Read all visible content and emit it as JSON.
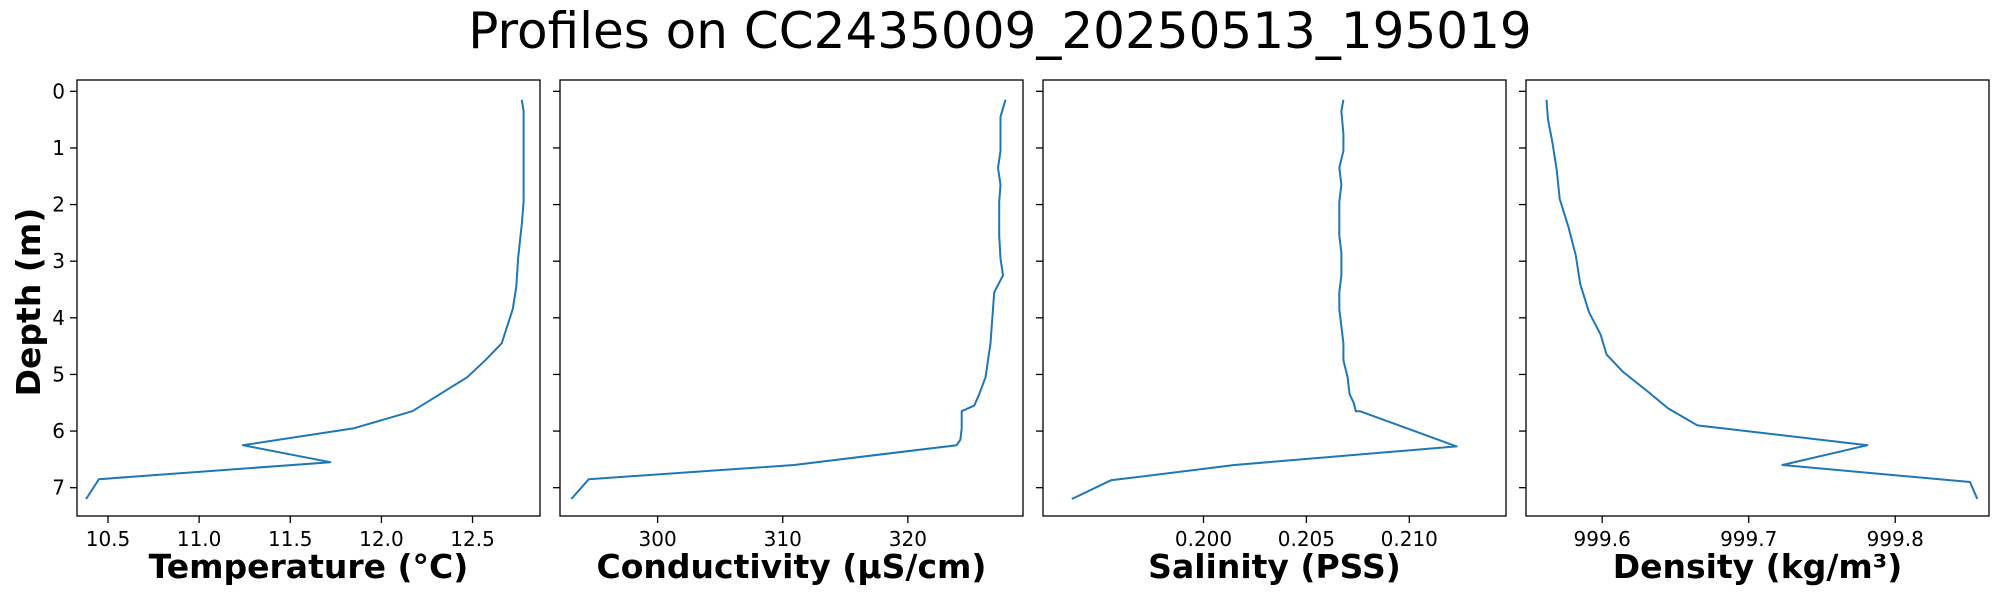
{
  "figure": {
    "title": "Profiles on CC2435009_20250513_195019",
    "ylabel": "Depth (m)"
  },
  "colors": {
    "line": "#1f77b4",
    "axes": "#000000",
    "background": "#ffffff"
  },
  "chart_data": [
    {
      "type": "line",
      "xlabel": "Temperature (°C)",
      "ylabel": "Depth (m)",
      "xlim": [
        10.33,
        12.87
      ],
      "ylim": [
        7.5,
        -0.2
      ],
      "y_inverted": true,
      "xticks": [
        10.5,
        11.0,
        11.5,
        12.0,
        12.5
      ],
      "xtick_labels": [
        "10.5",
        "11.0",
        "11.5",
        "12.0",
        "12.5"
      ],
      "yticks": [
        0,
        1,
        2,
        3,
        4,
        5,
        6,
        7
      ],
      "ytick_labels": [
        "0",
        "1",
        "2",
        "3",
        "4",
        "5",
        "6",
        "7"
      ],
      "grid": false,
      "x": [
        12.77,
        12.78,
        12.78,
        12.78,
        12.78,
        12.77,
        12.76,
        12.75,
        12.74,
        12.72,
        12.69,
        12.66,
        12.57,
        12.47,
        12.32,
        12.17,
        11.85,
        11.24,
        11.72,
        10.45,
        10.38
      ],
      "y": [
        0.15,
        0.35,
        0.75,
        1.35,
        1.95,
        2.35,
        2.65,
        2.95,
        3.45,
        3.85,
        4.15,
        4.45,
        4.75,
        5.05,
        5.35,
        5.65,
        5.95,
        6.25,
        6.55,
        6.85,
        7.2
      ]
    },
    {
      "type": "line",
      "xlabel": "Conductivity (µS/cm)",
      "ylabel": "",
      "xlim": [
        292.2,
        329.2
      ],
      "ylim": [
        7.5,
        -0.2
      ],
      "y_inverted": true,
      "xticks": [
        300,
        310,
        320
      ],
      "xtick_labels": [
        "300",
        "310",
        "320"
      ],
      "yticks": [
        0,
        1,
        2,
        3,
        4,
        5,
        6,
        7
      ],
      "ytick_labels": [],
      "grid": false,
      "x": [
        327.8,
        327.4,
        327.4,
        327.4,
        327.2,
        327.4,
        327.3,
        327.3,
        327.3,
        327.4,
        327.6,
        326.9,
        326.8,
        326.7,
        326.6,
        326.4,
        326.2,
        325.7,
        325.3,
        324.3,
        324.3,
        324.2,
        323.9,
        310.9,
        294.5,
        293.1
      ],
      "y": [
        0.15,
        0.45,
        0.75,
        1.05,
        1.35,
        1.65,
        1.95,
        2.25,
        2.55,
        2.95,
        3.25,
        3.55,
        3.85,
        4.15,
        4.45,
        4.75,
        5.05,
        5.35,
        5.55,
        5.65,
        5.95,
        6.15,
        6.25,
        6.6,
        6.85,
        7.2
      ]
    },
    {
      "type": "line",
      "xlabel": "Salinity (PSS)",
      "ylabel": "",
      "xlim": [
        0.1922,
        0.2147
      ],
      "ylim": [
        7.5,
        -0.2
      ],
      "y_inverted": true,
      "xticks": [
        0.2,
        0.205,
        0.21
      ],
      "xtick_labels": [
        "0.200",
        "0.205",
        "0.210"
      ],
      "yticks": [
        0,
        1,
        2,
        3,
        4,
        5,
        6,
        7
      ],
      "ytick_labels": [],
      "grid": false,
      "x": [
        0.2068,
        0.2067,
        0.2068,
        0.2068,
        0.2066,
        0.2067,
        0.2066,
        0.2066,
        0.2066,
        0.2067,
        0.2067,
        0.2066,
        0.2066,
        0.2067,
        0.2068,
        0.2068,
        0.207,
        0.2071,
        0.2073,
        0.2074,
        0.2076,
        0.2123,
        0.2015,
        0.1955,
        0.1936
      ],
      "y": [
        0.15,
        0.35,
        0.75,
        1.05,
        1.35,
        1.65,
        1.95,
        2.25,
        2.55,
        2.85,
        3.25,
        3.55,
        3.85,
        4.15,
        4.45,
        4.75,
        5.05,
        5.35,
        5.5,
        5.65,
        5.65,
        6.27,
        6.6,
        6.87,
        7.2
      ]
    },
    {
      "type": "line",
      "xlabel": "Density (kg/m³)",
      "ylabel": "",
      "xlim": [
        999.548,
        999.864
      ],
      "ylim": [
        7.5,
        -0.2
      ],
      "y_inverted": true,
      "xticks": [
        999.6,
        999.7,
        999.8
      ],
      "xtick_labels": [
        "999.6",
        "999.7",
        "999.8"
      ],
      "yticks": [
        0,
        1,
        2,
        3,
        4,
        5,
        6,
        7
      ],
      "ytick_labels": [],
      "grid": false,
      "x": [
        999.562,
        999.563,
        999.566,
        999.569,
        999.571,
        999.577,
        999.582,
        999.585,
        999.591,
        999.599,
        999.603,
        999.614,
        999.631,
        999.645,
        999.665,
        999.781,
        999.723,
        999.851,
        999.856
      ],
      "y": [
        0.15,
        0.5,
        0.9,
        1.4,
        1.9,
        2.4,
        2.9,
        3.4,
        3.9,
        4.3,
        4.65,
        4.95,
        5.3,
        5.6,
        5.9,
        6.25,
        6.6,
        6.9,
        7.2
      ]
    }
  ]
}
